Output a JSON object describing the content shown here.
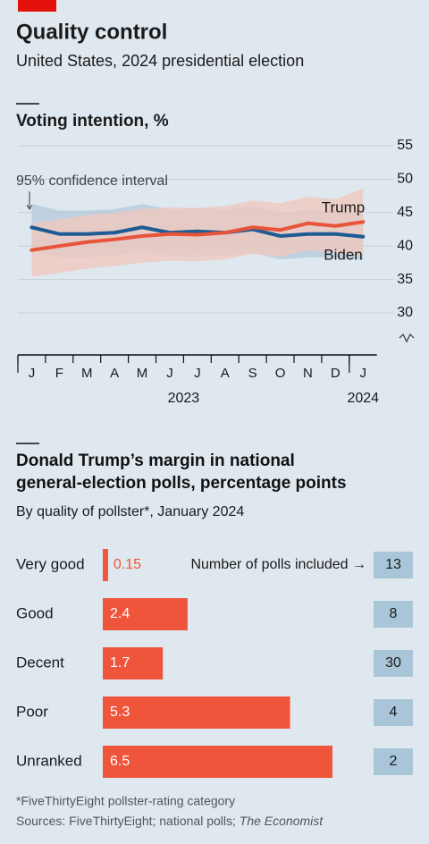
{
  "header": {
    "title": "Quality control",
    "subtitle": "United States, 2024 presidential election"
  },
  "chart_data": [
    {
      "type": "line",
      "title": "Voting intention, %",
      "annotation": "95% confidence interval",
      "x": [
        "2023-01",
        "2023-02",
        "2023-03",
        "2023-04",
        "2023-05",
        "2023-06",
        "2023-07",
        "2023-08",
        "2023-09",
        "2023-10",
        "2023-11",
        "2023-12",
        "2024-01"
      ],
      "xticks": [
        {
          "value": "2023-01",
          "label": "J"
        },
        {
          "value": "2023-02",
          "label": "F"
        },
        {
          "value": "2023-03",
          "label": "M"
        },
        {
          "value": "2023-04",
          "label": "A"
        },
        {
          "value": "2023-05",
          "label": "M"
        },
        {
          "value": "2023-06",
          "label": "J"
        },
        {
          "value": "2023-07",
          "label": "J"
        },
        {
          "value": "2023-08",
          "label": "A"
        },
        {
          "value": "2023-09",
          "label": "S"
        },
        {
          "value": "2023-10",
          "label": "O"
        },
        {
          "value": "2023-11",
          "label": "N"
        },
        {
          "value": "2023-12",
          "label": "D"
        },
        {
          "value": "2024-01",
          "label": "J"
        }
      ],
      "year_labels": [
        2023,
        2024
      ],
      "ylim": [
        30,
        55
      ],
      "yticks": [
        30,
        35,
        40,
        45,
        50,
        55
      ],
      "grid": true,
      "series": [
        {
          "name": "Biden",
          "color": "#1f5b94",
          "band_color": "#b4c9da",
          "values": [
            42.8,
            41.8,
            41.8,
            42.0,
            42.8,
            42.0,
            42.2,
            42.0,
            42.5,
            41.5,
            41.8,
            41.8,
            41.4
          ],
          "lower": [
            39.3,
            38.3,
            38.3,
            38.5,
            39.3,
            38.5,
            38.7,
            38.5,
            39.0,
            38.0,
            38.3,
            38.3,
            37.9
          ],
          "upper": [
            46.3,
            45.3,
            45.3,
            45.5,
            46.3,
            45.5,
            45.7,
            45.5,
            46.0,
            45.0,
            45.3,
            45.3,
            44.9
          ]
        },
        {
          "name": "Trump",
          "color": "#e8543a",
          "band_color": "#f1c7bc",
          "values": [
            39.4,
            40.0,
            40.6,
            41.0,
            41.5,
            41.8,
            41.7,
            42.0,
            42.8,
            42.4,
            43.4,
            43.0,
            43.6
          ],
          "lower": [
            35.4,
            36.0,
            36.6,
            37.0,
            37.5,
            37.8,
            37.7,
            38.0,
            38.8,
            38.4,
            39.4,
            39.0,
            38.6
          ],
          "upper": [
            43.4,
            44.0,
            44.6,
            45.0,
            45.5,
            45.8,
            45.7,
            46.0,
            46.8,
            46.4,
            47.4,
            47.0,
            48.6
          ]
        }
      ]
    },
    {
      "type": "bar",
      "orientation": "horizontal",
      "title": "Donald Trump’s margin in national general-election polls, percentage points",
      "subtitle": "By quality of pollster*, January 2024",
      "categories": [
        "Very good",
        "Good",
        "Decent",
        "Poor",
        "Unranked"
      ],
      "values": [
        0.15,
        2.4,
        1.7,
        5.3,
        6.5
      ],
      "color": "#ee553a",
      "count_label": "Number of polls included →",
      "counts": [
        13,
        8,
        30,
        4,
        2
      ],
      "count_color": "#a9c6d8"
    }
  ],
  "footer": {
    "note": "*FiveThirtyEight pollster-rating category",
    "source": "Sources: FiveThirtyEight; national polls; ",
    "source_italic": "The Economist"
  }
}
